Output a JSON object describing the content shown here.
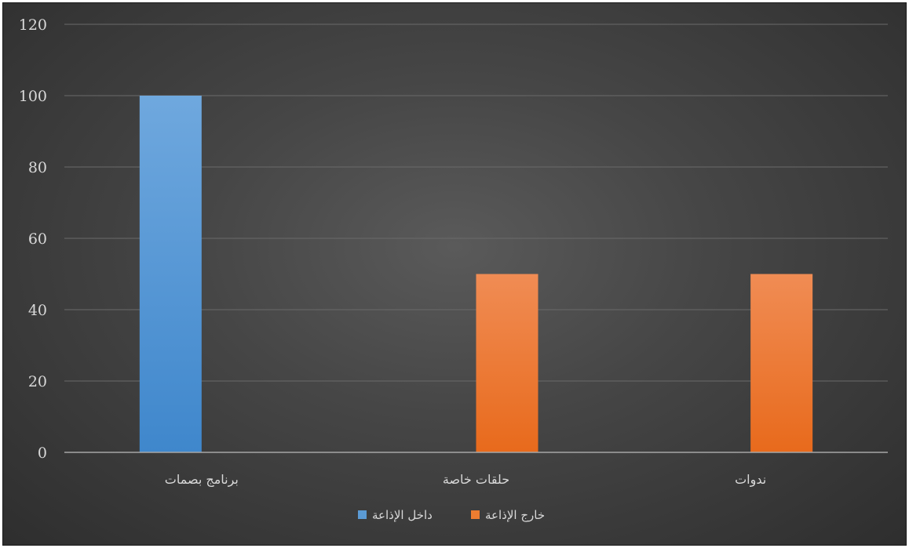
{
  "chart_data": {
    "type": "bar",
    "categories": [
      "برنامج بصمات",
      "حلقات خاصة",
      "ندوات"
    ],
    "series": [
      {
        "name": "داخل الإذاعة",
        "color": "#5b9bd5",
        "values": [
          100,
          null,
          null
        ]
      },
      {
        "name": "خارج الإذاعة",
        "color": "#ed7d31",
        "values": [
          null,
          50,
          50
        ]
      }
    ],
    "title": "",
    "xlabel": "",
    "ylabel": "",
    "ylim": [
      0,
      120
    ],
    "yticks": [
      0,
      20,
      40,
      60,
      80,
      100,
      120
    ],
    "grid": true,
    "legend_position": "bottom"
  }
}
